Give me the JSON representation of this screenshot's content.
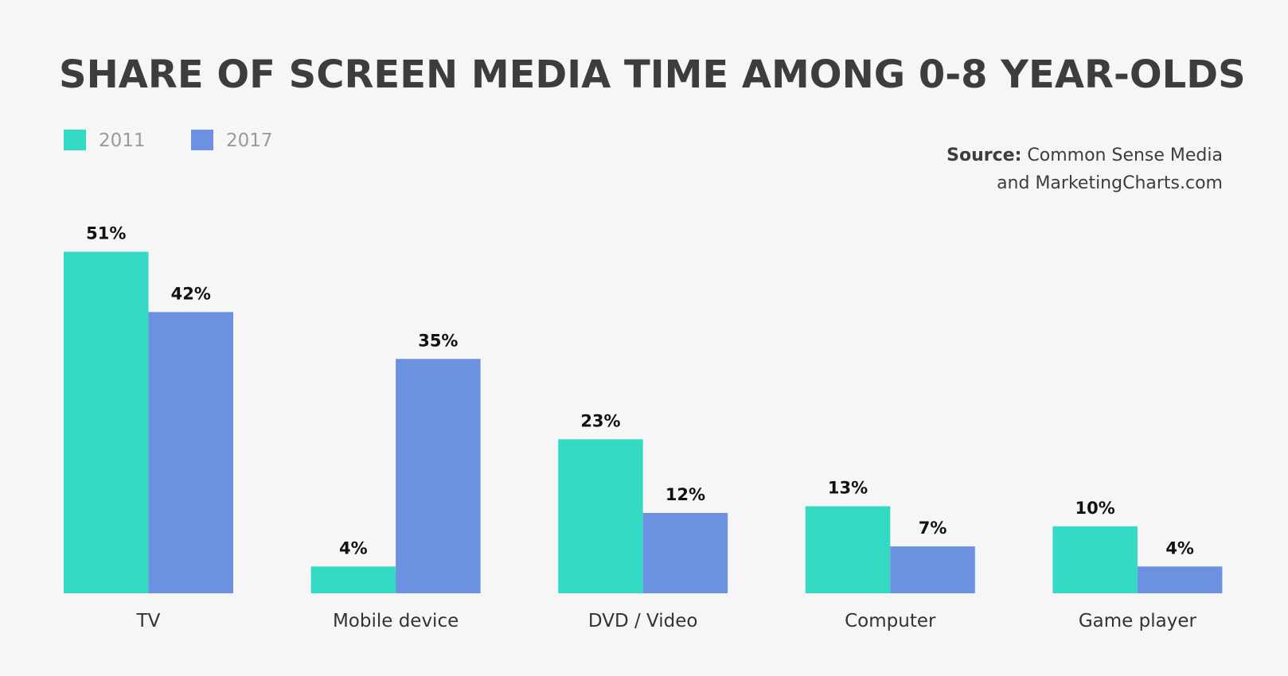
{
  "chart_data": {
    "type": "bar",
    "title": "SHARE OF SCREEN MEDIA TIME AMONG 0-8 YEAR-OLDS",
    "source_label": "Source:",
    "source_lines": [
      "Common Sense Media",
      "and MarketingCharts.com"
    ],
    "categories": [
      "TV",
      "Mobile device",
      "DVD / Video",
      "Computer",
      "Game player"
    ],
    "series": [
      {
        "name": "2011",
        "color": "#34dac4",
        "values": [
          51,
          4,
          23,
          13,
          10
        ],
        "value_labels": [
          "51%",
          "4%",
          "23%",
          "13%",
          "10%"
        ]
      },
      {
        "name": "2017",
        "color": "#6b91e0",
        "values": [
          42,
          35,
          12,
          7,
          4
        ],
        "value_labels": [
          "42%",
          "35%",
          "12%",
          "7%",
          "4%"
        ]
      }
    ]
  }
}
